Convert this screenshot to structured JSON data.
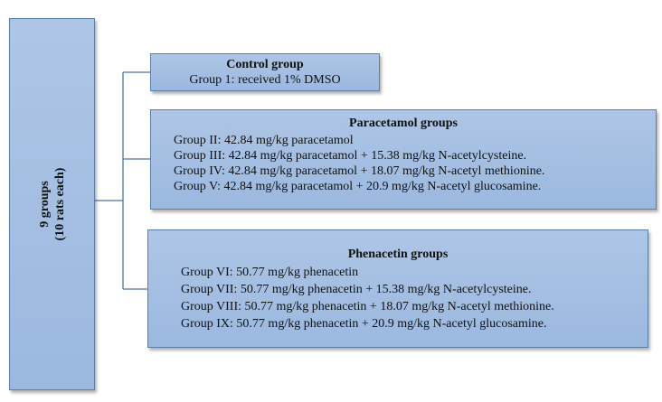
{
  "root": {
    "line1": "9 groups",
    "line2": "(10 rats each)"
  },
  "control": {
    "title": "Control group",
    "lines": [
      "Group 1: received 1% DMSO"
    ]
  },
  "paracetamol": {
    "title": "Paracetamol groups",
    "lines": [
      "Group II: 42.84 mg/kg paracetamol",
      "Group III: 42.84 mg/kg paracetamol + 15.38 mg/kg N-acetylcysteine.",
      "Group IV: 42.84 mg/kg paracetamol + 18.07 mg/kg N-acetyl methionine.",
      "Group V: 42.84 mg/kg paracetamol + 20.9 mg/kg N-acetyl glucosamine."
    ]
  },
  "phenacetin": {
    "title": "Phenacetin groups",
    "lines": [
      "Group VI: 50.77 mg/kg phenacetin",
      "Group VII: 50.77 mg/kg phenacetin + 15.38 mg/kg N-acetylcysteine.",
      "Group VIII: 50.77 mg/kg phenacetin + 18.07 mg/kg N-acetyl methionine.",
      "Group IX: 50.77 mg/kg phenacetin + 20.9 mg/kg N-acetyl glucosamine."
    ]
  },
  "colors": {
    "box_fill": "#a6c0e3",
    "box_border": "#5c7fa8",
    "connector": "#4f73a0"
  }
}
